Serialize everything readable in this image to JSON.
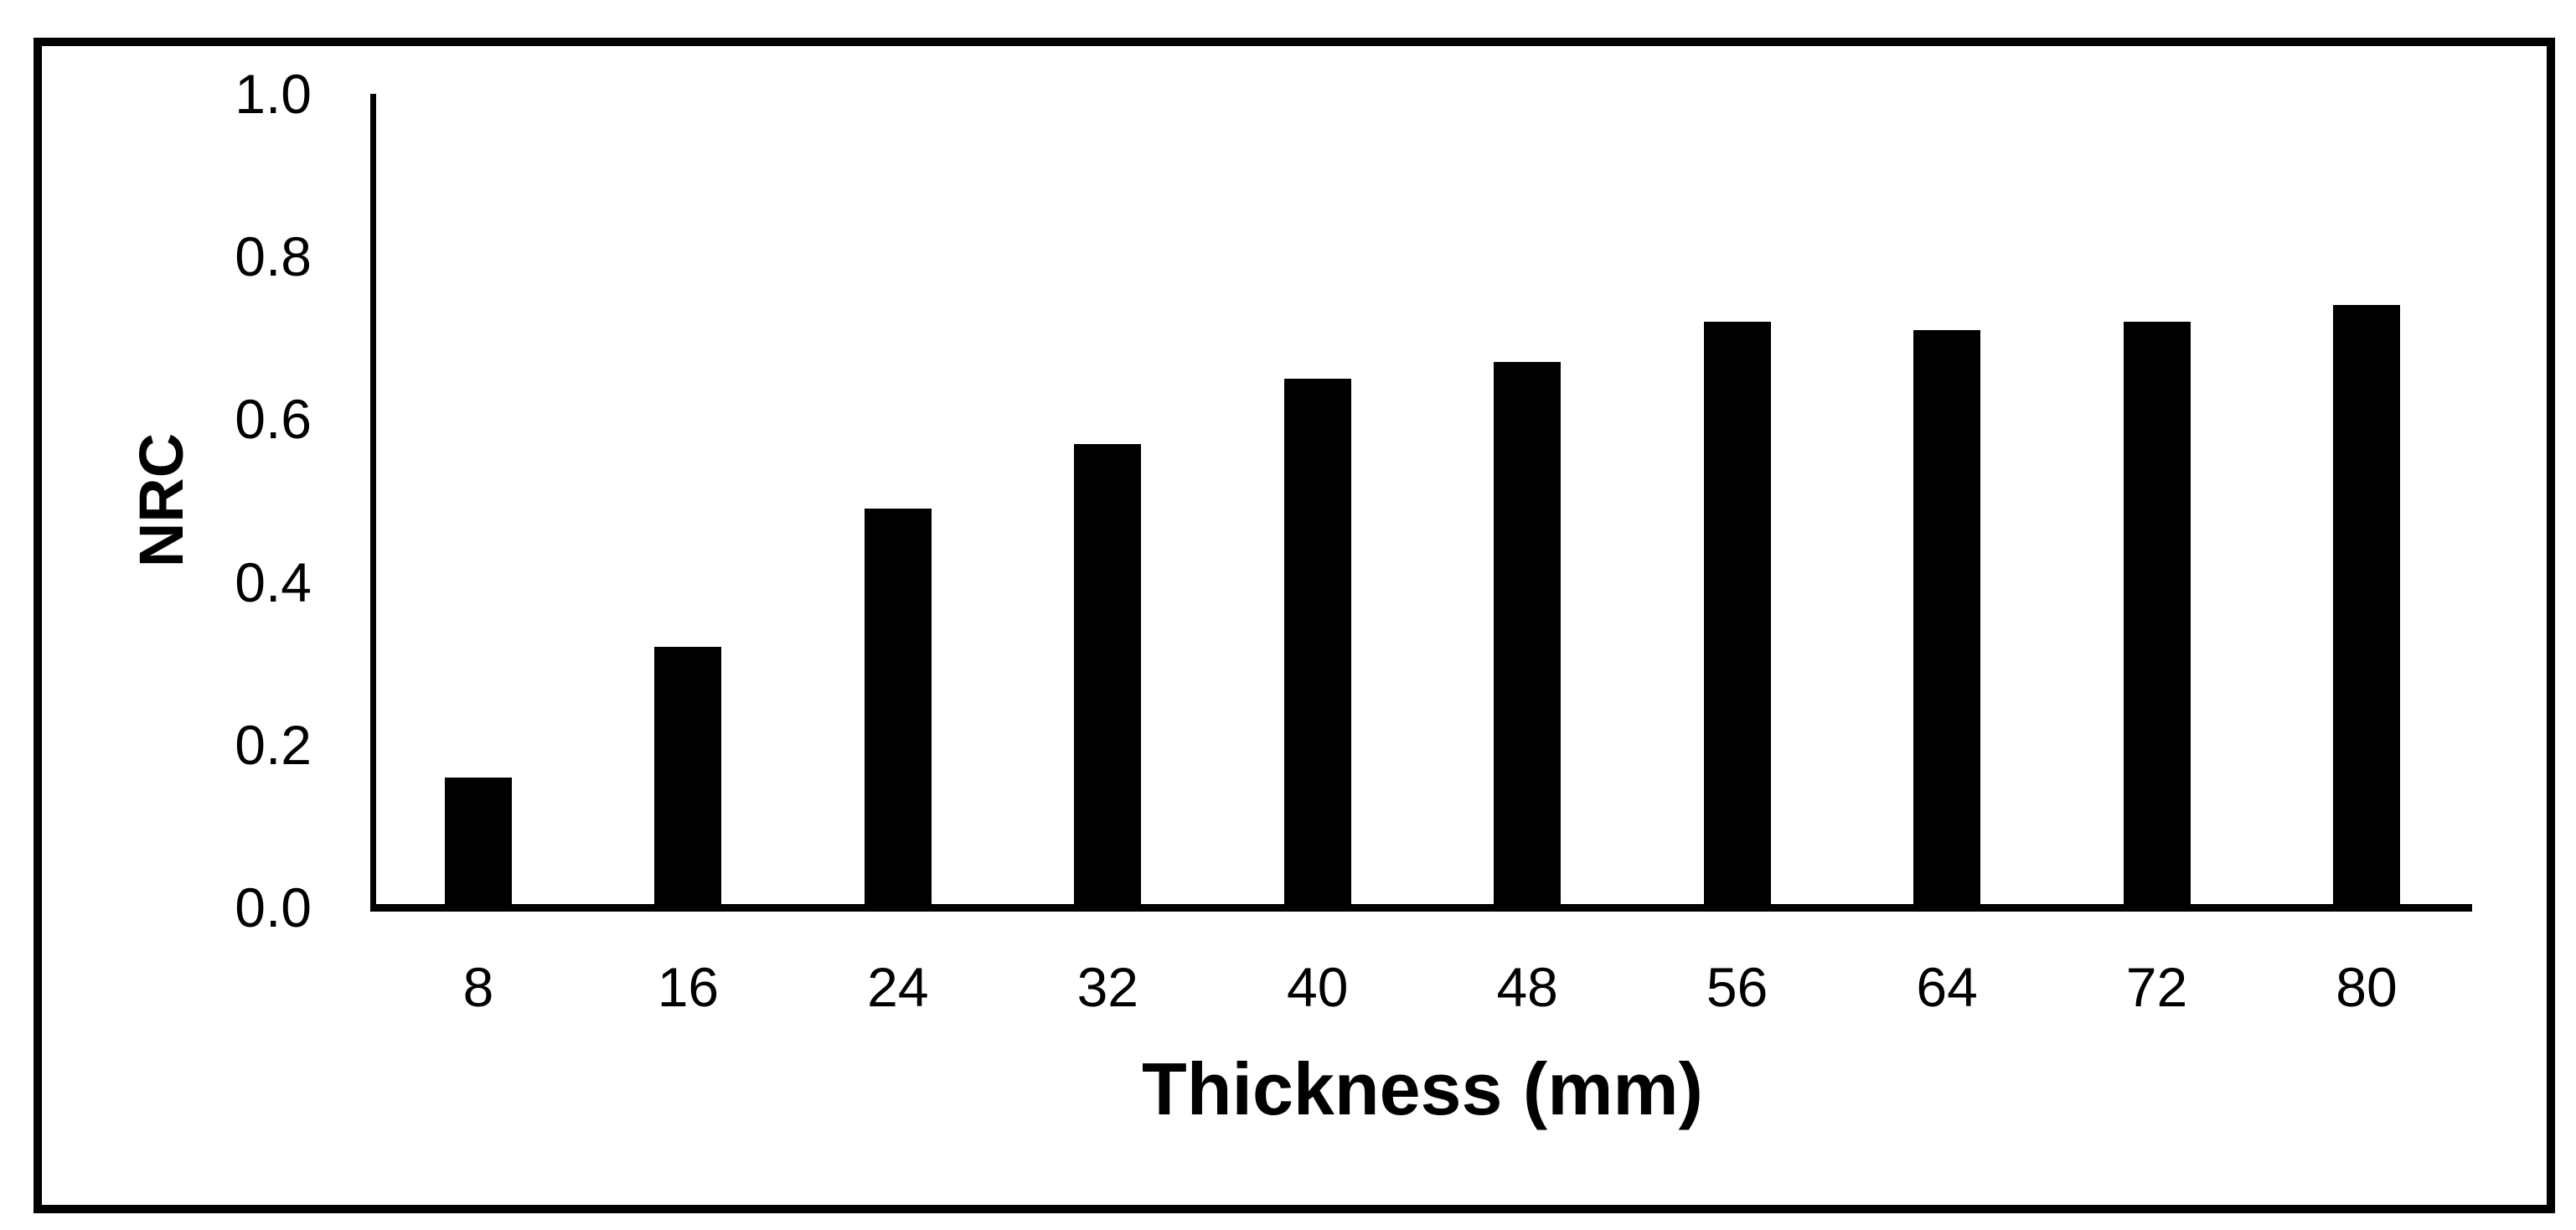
{
  "chart_data": {
    "type": "bar",
    "title": "",
    "categories": [
      "8",
      "16",
      "24",
      "32",
      "40",
      "48",
      "56",
      "64",
      "72",
      "80"
    ],
    "values": [
      0.16,
      0.32,
      0.49,
      0.57,
      0.65,
      0.67,
      0.72,
      0.71,
      0.72,
      0.74
    ],
    "xlabel": "Thickness (mm)",
    "ylabel": "NRC",
    "ylim": [
      0,
      1
    ],
    "ytick_labels": [
      "0.0",
      "0.2",
      "0.4",
      "0.6",
      "0.8",
      "1.0"
    ],
    "ytick_values": [
      0.0,
      0.2,
      0.4,
      0.6,
      0.8,
      1.0
    ],
    "grid": "off",
    "legend": "none",
    "bar_color": "#000000",
    "background_color": "#ffffff",
    "frame_color": "#000000"
  }
}
